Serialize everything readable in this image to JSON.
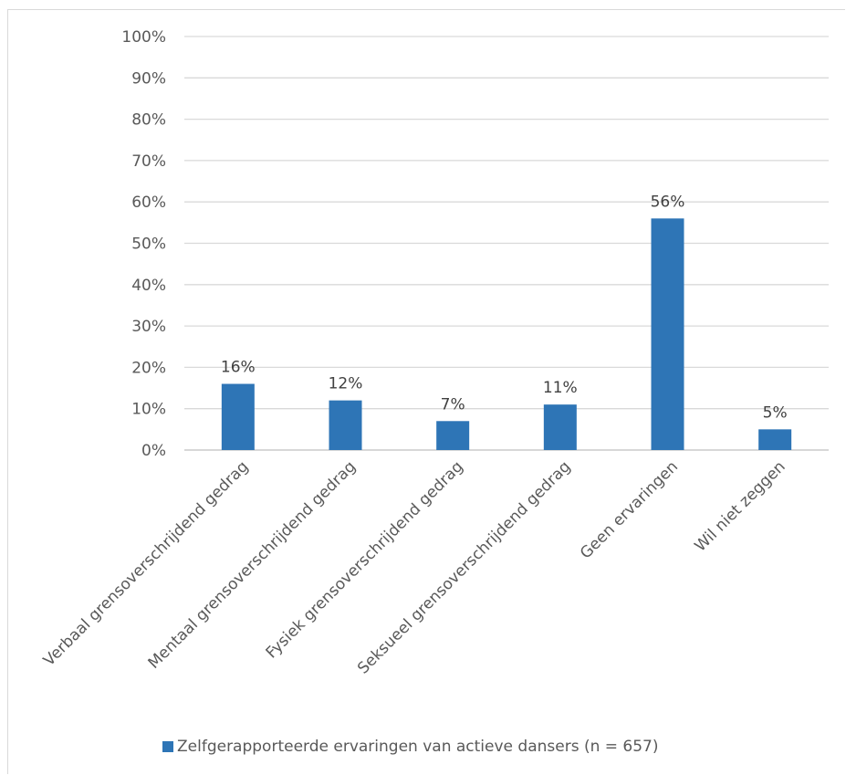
{
  "chart_data": {
    "type": "bar",
    "categories": [
      "Verbaal grensoverschrijdend gedrag",
      "Mentaal grensoverschrijdend gedrag",
      "Fysiek grensoverschrijdend gedrag",
      "Seksueel grensoverschrijdend gedrag",
      "Geen ervaringen",
      "Wil niet zeggen"
    ],
    "series": [
      {
        "name": "Zelfgerapporteerde ervaringen van actieve dansers (n = 657)",
        "values": [
          16,
          12,
          7,
          11,
          56,
          5
        ],
        "data_labels": [
          "16%",
          "12%",
          "7%",
          "11%",
          "56%",
          "5%"
        ],
        "color": "#2e75b6"
      }
    ],
    "ylim": [
      0,
      100
    ],
    "yticks": [
      0,
      10,
      20,
      30,
      40,
      50,
      60,
      70,
      80,
      90,
      100
    ],
    "ytick_labels": [
      "0%",
      "10%",
      "20%",
      "30%",
      "40%",
      "50%",
      "60%",
      "70%",
      "80%",
      "90%",
      "100%"
    ],
    "grid": true,
    "legend_position": "bottom"
  }
}
